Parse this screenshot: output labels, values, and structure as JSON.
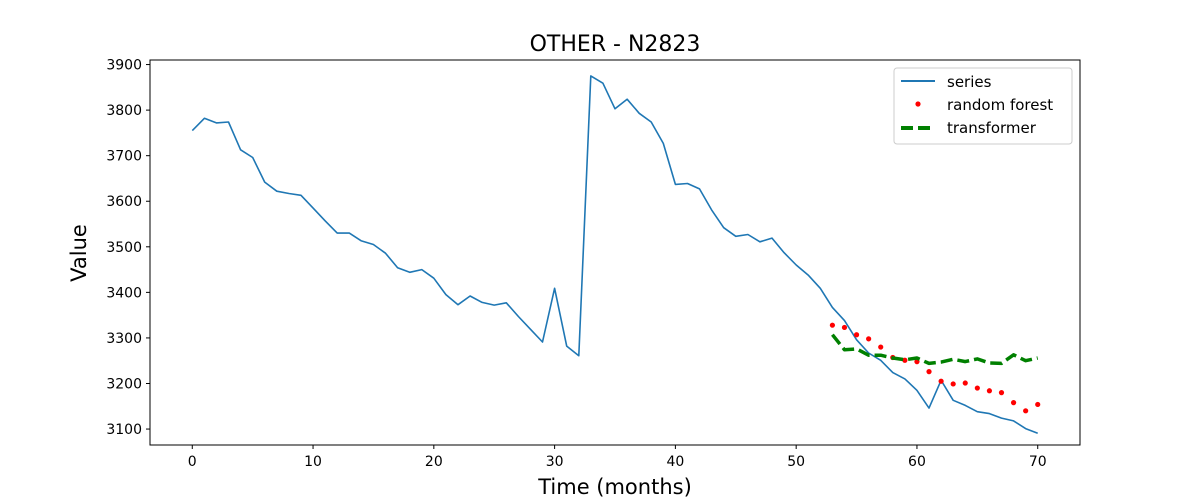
{
  "chart_data": {
    "type": "line",
    "title": "OTHER - N2823",
    "xlabel": "Time (months)",
    "ylabel": "Value",
    "xlim": [
      -3.5,
      73.5
    ],
    "ylim": [
      3065,
      3910
    ],
    "xticks": [
      0,
      10,
      20,
      30,
      40,
      50,
      60,
      70
    ],
    "yticks": [
      3100,
      3200,
      3300,
      3400,
      3500,
      3600,
      3700,
      3800,
      3900
    ],
    "grid": false,
    "legend_position": "top-right",
    "series": [
      {
        "name": "series",
        "style": "solid-line",
        "color": "#1f77b4",
        "x": [
          0,
          1,
          2,
          3,
          4,
          5,
          6,
          7,
          8,
          9,
          10,
          11,
          12,
          13,
          14,
          15,
          16,
          17,
          18,
          19,
          20,
          21,
          22,
          23,
          24,
          25,
          26,
          27,
          28,
          29,
          30,
          31,
          32,
          33,
          34,
          35,
          36,
          37,
          38,
          39,
          40,
          41,
          42,
          43,
          44,
          45,
          46,
          47,
          48,
          49,
          50,
          51,
          52,
          53,
          54,
          55,
          56,
          57,
          58,
          59,
          60,
          61,
          62,
          63,
          64,
          65,
          66,
          67,
          68,
          69,
          70
        ],
        "values": [
          3755,
          3782,
          3772,
          3774,
          3713,
          3696,
          3642,
          3622,
          3617,
          3613,
          3585,
          3557,
          3530,
          3530,
          3513,
          3505,
          3486,
          3454,
          3444,
          3450,
          3431,
          3395,
          3373,
          3392,
          3378,
          3372,
          3377,
          3347,
          3319,
          3291,
          3409,
          3282,
          3261,
          3875,
          3859,
          3803,
          3824,
          3793,
          3774,
          3727,
          3637,
          3639,
          3627,
          3581,
          3542,
          3523,
          3527,
          3511,
          3519,
          3487,
          3460,
          3438,
          3409,
          3367,
          3338,
          3296,
          3267,
          3251,
          3224,
          3210,
          3185,
          3146,
          3207,
          3163,
          3152,
          3138,
          3134,
          3124,
          3118,
          3101,
          3091
        ]
      },
      {
        "name": "random forest",
        "style": "dots",
        "color": "#ff0000",
        "x": [
          53,
          54,
          55,
          56,
          57,
          58,
          59,
          60,
          61,
          62,
          63,
          64,
          65,
          66,
          67,
          68,
          69,
          70
        ],
        "values": [
          3328,
          3323,
          3307,
          3298,
          3280,
          3257,
          3251,
          3248,
          3226,
          3205,
          3199,
          3201,
          3190,
          3184,
          3180,
          3158,
          3140,
          3154
        ]
      },
      {
        "name": "transformer",
        "style": "dashed-line",
        "color": "#008000",
        "x": [
          53,
          54,
          55,
          56,
          57,
          58,
          59,
          60,
          61,
          62,
          63,
          64,
          65,
          66,
          67,
          68,
          69,
          70
        ],
        "values": [
          3307,
          3274,
          3276,
          3262,
          3262,
          3256,
          3252,
          3256,
          3244,
          3247,
          3253,
          3248,
          3254,
          3245,
          3244,
          3263,
          3250,
          3256
        ]
      }
    ]
  }
}
